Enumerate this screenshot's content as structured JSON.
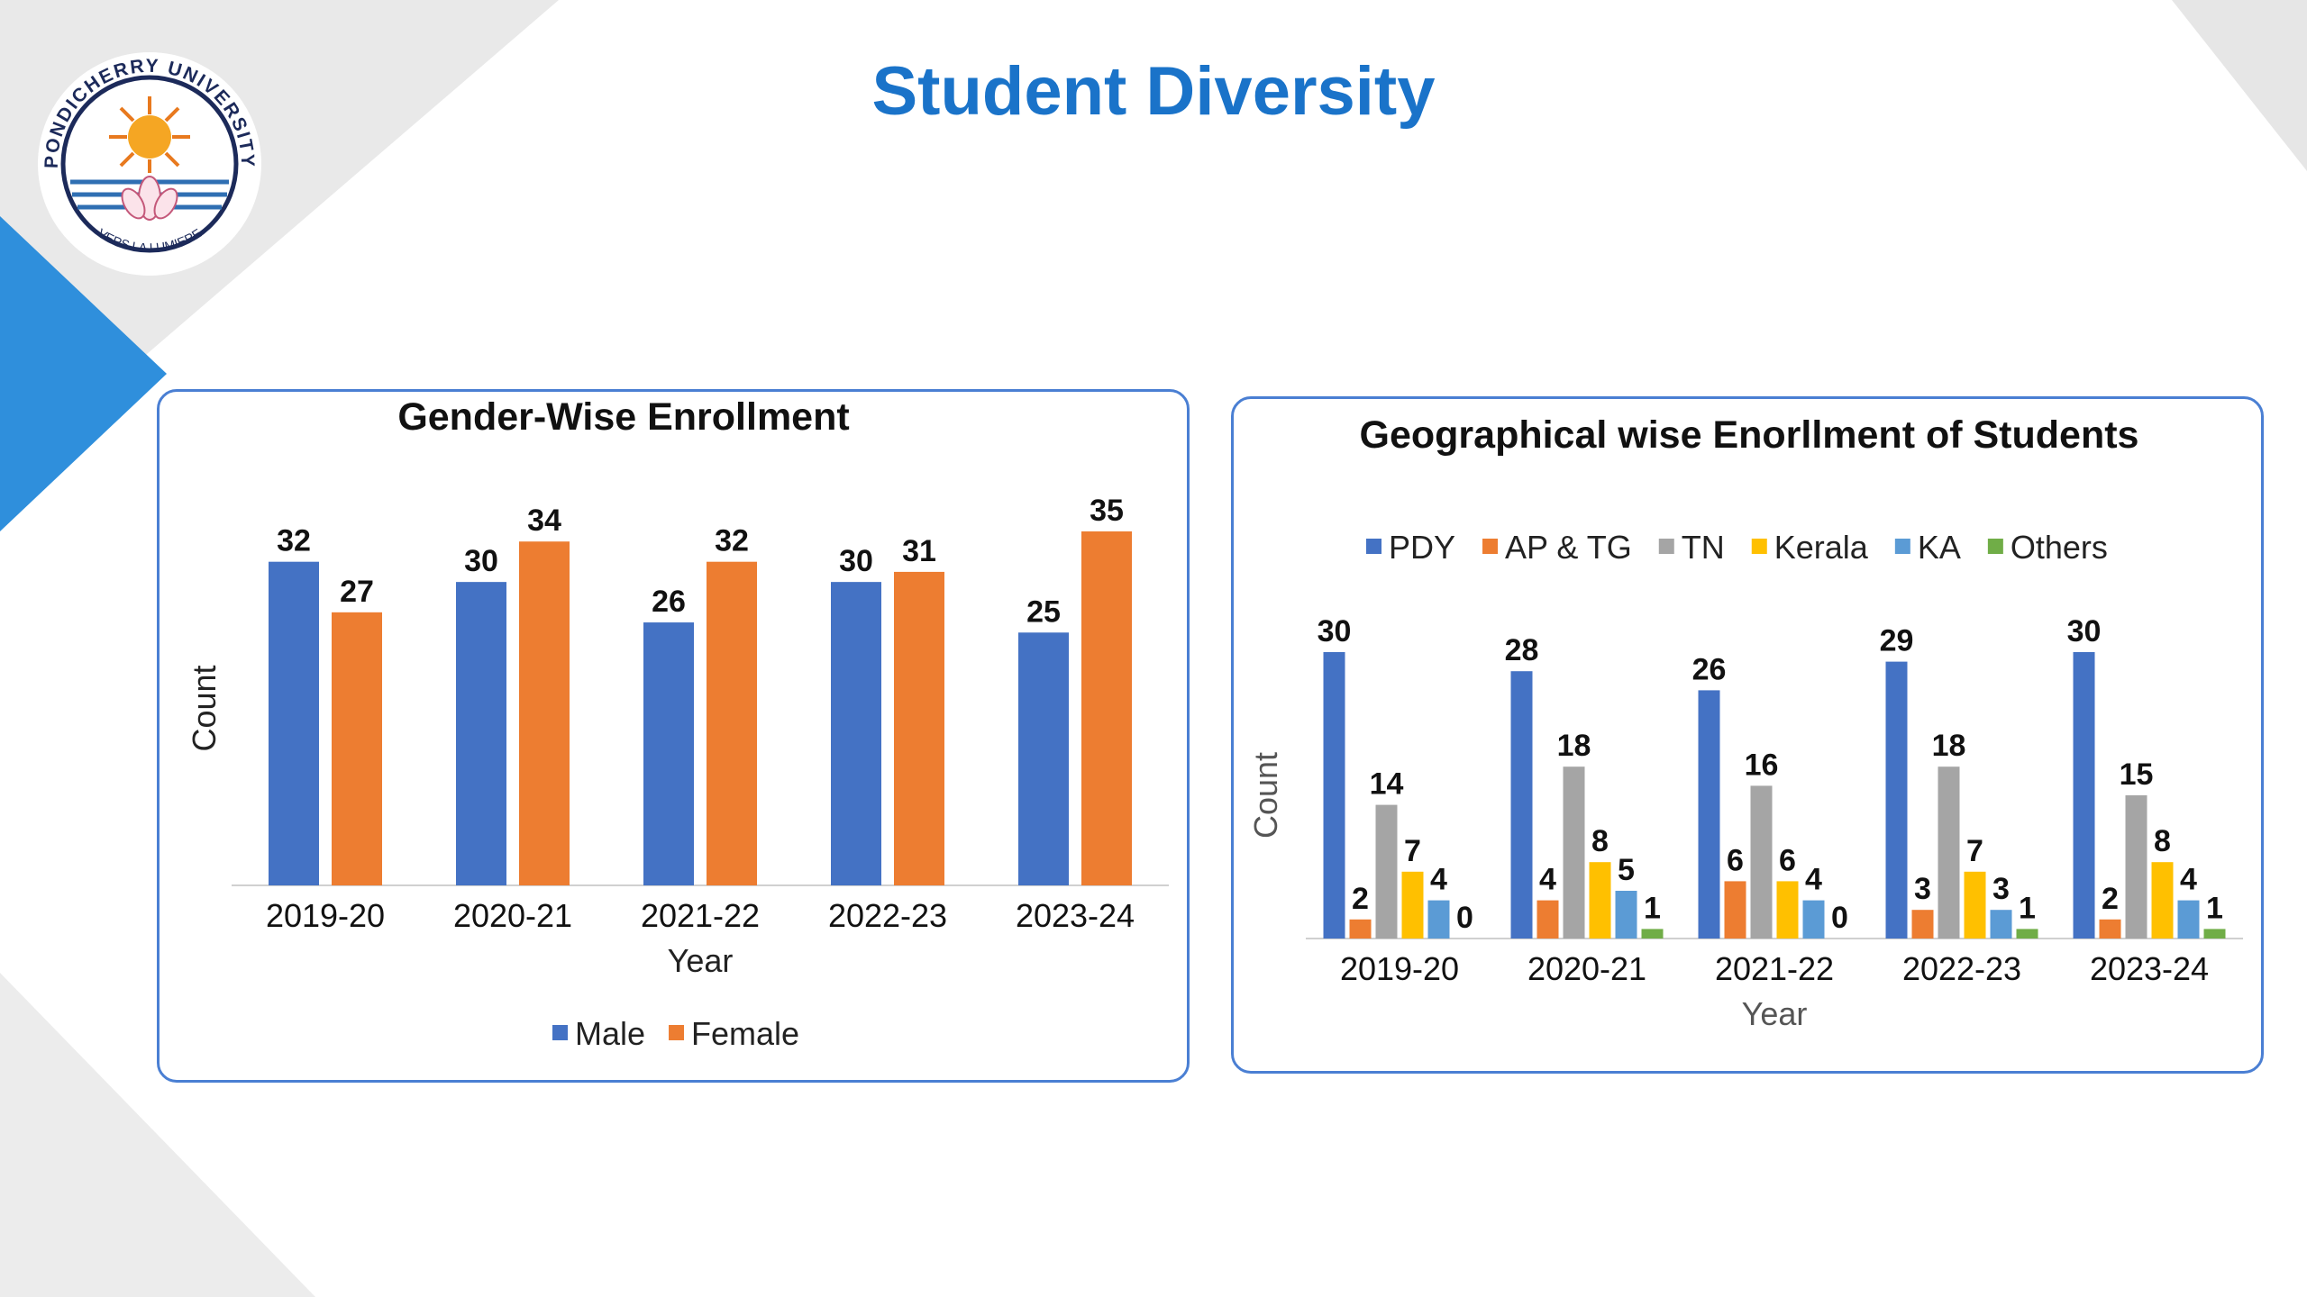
{
  "slide": {
    "title": "Student Diversity"
  },
  "logo": {
    "text_top": "PONDICHERRY UNIVERSITY",
    "text_bottom": "VERS LA LUMIERE"
  },
  "colors": {
    "title": "#1a73c9",
    "accent_blue": "#2f8fdc",
    "grey_shape": "#e3e3e3",
    "panel_border": "#4a7fd3"
  },
  "chart_data": [
    {
      "type": "bar",
      "title": "Gender-Wise Enrollment",
      "xlabel": "Year",
      "ylabel": "Count",
      "categories": [
        "2019-20",
        "2020-21",
        "2021-22",
        "2022-23",
        "2023-24"
      ],
      "series": [
        {
          "name": "Male",
          "color": "#4472c4",
          "values": [
            32,
            30,
            26,
            30,
            25
          ]
        },
        {
          "name": "Female",
          "color": "#ed7d31",
          "values": [
            27,
            34,
            32,
            31,
            35
          ]
        }
      ],
      "ylim": [
        0,
        35
      ],
      "grid": false,
      "legend": "bottom"
    },
    {
      "type": "bar",
      "title": "Geographical wise Enorllment of Students",
      "xlabel": "Year",
      "ylabel": "Count",
      "categories": [
        "2019-20",
        "2020-21",
        "2021-22",
        "2022-23",
        "2023-24"
      ],
      "series": [
        {
          "name": "PDY",
          "color": "#4472c4",
          "values": [
            30,
            28,
            26,
            29,
            30
          ]
        },
        {
          "name": "AP & TG",
          "color": "#ed7d31",
          "values": [
            2,
            4,
            6,
            3,
            2
          ]
        },
        {
          "name": "TN",
          "color": "#a5a5a5",
          "values": [
            14,
            18,
            16,
            18,
            15
          ]
        },
        {
          "name": "Kerala",
          "color": "#ffc000",
          "values": [
            7,
            8,
            6,
            7,
            8
          ]
        },
        {
          "name": "KA",
          "color": "#5b9bd5",
          "values": [
            4,
            5,
            4,
            3,
            4
          ]
        },
        {
          "name": "Others",
          "color": "#70ad47",
          "values": [
            0,
            1,
            0,
            1,
            1
          ]
        }
      ],
      "ylim": [
        0,
        30
      ],
      "grid": false,
      "legend": "top"
    }
  ]
}
